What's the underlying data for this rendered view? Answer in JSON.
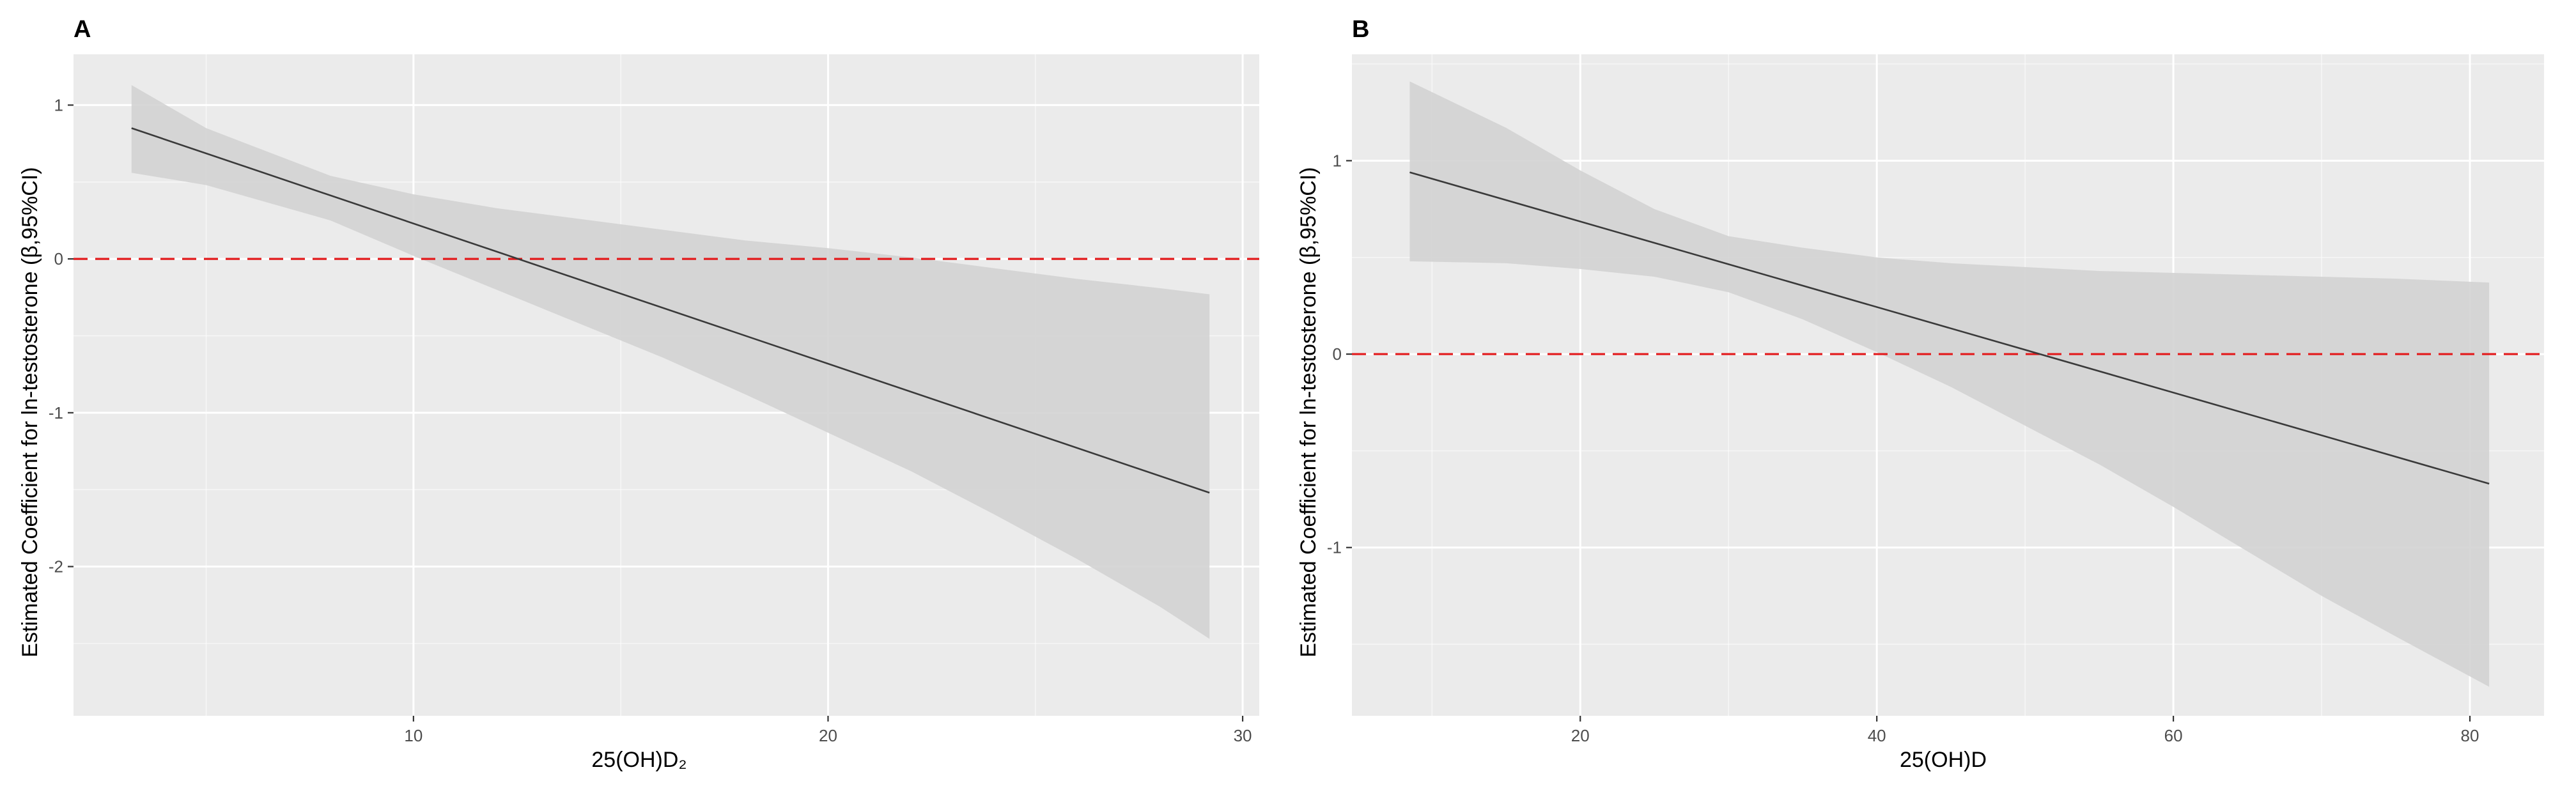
{
  "colors": {
    "panel_bg": "#EBEBEB",
    "grid_major": "#FFFFFF",
    "ribbon": "#D3D3D3",
    "fit_line": "#3A3A3A",
    "reference_line": "#E31A1C",
    "tick": "#333333",
    "tick_text": "#4D4D4D"
  },
  "chart_data": [
    {
      "type": "line",
      "panel_label": "A",
      "xlabel": "25(OH)D₂",
      "ylabel": "Estimated Coefficient for ln-testosterone (β,95%CI)",
      "xlim": [
        1.8,
        30.4
      ],
      "ylim": [
        -2.97,
        1.33
      ],
      "x_ticks": [
        10,
        20,
        30
      ],
      "x_tick_labels": [
        "10",
        "20",
        "30"
      ],
      "x_minor_ticks": [
        5,
        15,
        25
      ],
      "y_ticks": [
        1,
        0,
        -1,
        -2
      ],
      "y_tick_labels": [
        "1",
        "0",
        "-1",
        "-2"
      ],
      "y_minor_ticks": [
        0.5,
        -0.5,
        -1.5,
        -2.5
      ],
      "reference_line_y": 0,
      "series": [
        {
          "name": "fit",
          "x": [
            3.2,
            29.2
          ],
          "y": [
            0.85,
            -1.52
          ]
        },
        {
          "name": "95% CI",
          "x": [
            3.2,
            5,
            8,
            10,
            12,
            14,
            16,
            18,
            20,
            22,
            24,
            26,
            28,
            29.2
          ],
          "lower": [
            0.56,
            0.48,
            0.25,
            0.02,
            -0.2,
            -0.42,
            -0.64,
            -0.88,
            -1.13,
            -1.38,
            -1.66,
            -1.95,
            -2.26,
            -2.47
          ],
          "upper": [
            1.13,
            0.85,
            0.54,
            0.42,
            0.33,
            0.26,
            0.19,
            0.12,
            0.07,
            0.01,
            -0.06,
            -0.13,
            -0.19,
            -0.23
          ]
        }
      ]
    },
    {
      "type": "line",
      "panel_label": "B",
      "xlabel": "25(OH)D",
      "ylabel": "Estimated Coefficient for ln-testosterone (β,95%CI)",
      "xlim": [
        4.6,
        85
      ],
      "ylim": [
        -1.87,
        1.55
      ],
      "x_ticks": [
        20,
        40,
        60,
        80
      ],
      "x_tick_labels": [
        "20",
        "40",
        "60",
        "80"
      ],
      "x_minor_ticks": [
        10,
        30,
        50,
        70
      ],
      "y_ticks": [
        1,
        0,
        -1
      ],
      "y_tick_labels": [
        "1",
        "0",
        "-1"
      ],
      "y_minor_ticks": [
        1.5,
        0.5,
        -0.5,
        -1.5
      ],
      "reference_line_y": 0,
      "series": [
        {
          "name": "fit",
          "x": [
            8.5,
            81.3
          ],
          "y": [
            0.94,
            -0.67
          ]
        },
        {
          "name": "95% CI",
          "x": [
            8.5,
            15,
            20,
            25,
            30,
            35,
            40,
            45,
            50,
            55,
            60,
            65,
            70,
            75,
            81.3
          ],
          "lower": [
            0.48,
            0.47,
            0.44,
            0.4,
            0.32,
            0.18,
            0.01,
            -0.17,
            -0.37,
            -0.57,
            -0.79,
            -1.02,
            -1.25,
            -1.46,
            -1.72
          ],
          "upper": [
            1.41,
            1.17,
            0.95,
            0.75,
            0.61,
            0.55,
            0.5,
            0.47,
            0.45,
            0.43,
            0.42,
            0.41,
            0.4,
            0.39,
            0.37
          ]
        }
      ]
    }
  ]
}
